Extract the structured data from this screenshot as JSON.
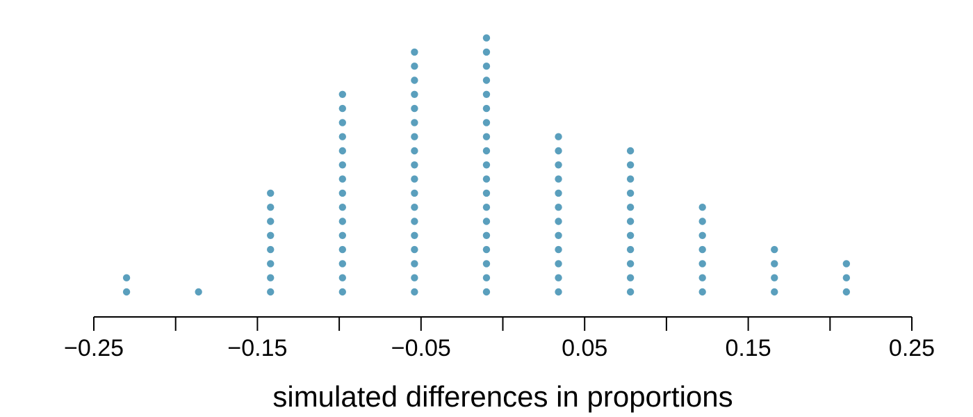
{
  "chart_data": {
    "type": "scatter",
    "subtype": "dot-plot",
    "xlabel": "simulated differences in proportions",
    "xlim": [
      -0.25,
      0.25
    ],
    "x_ticks": [
      -0.25,
      -0.2,
      -0.15,
      -0.1,
      -0.05,
      0,
      0.05,
      0.1,
      0.15,
      0.2,
      0.25
    ],
    "x_tick_labels": [
      "−0.25",
      "",
      "−0.15",
      "",
      "−0.05",
      "",
      "0.05",
      "",
      "0.15",
      "",
      "0.25"
    ],
    "dot_color": "#5a9fbd",
    "grid": false,
    "legend": "none",
    "points": [
      {
        "x": -0.23,
        "count": 2
      },
      {
        "x": -0.186,
        "count": 1
      },
      {
        "x": -0.142,
        "count": 8
      },
      {
        "x": -0.098,
        "count": 15
      },
      {
        "x": -0.054,
        "count": 18
      },
      {
        "x": -0.01,
        "count": 19
      },
      {
        "x": 0.034,
        "count": 12
      },
      {
        "x": 0.078,
        "count": 11
      },
      {
        "x": 0.122,
        "count": 7
      },
      {
        "x": 0.166,
        "count": 4
      },
      {
        "x": 0.21,
        "count": 3
      }
    ]
  }
}
